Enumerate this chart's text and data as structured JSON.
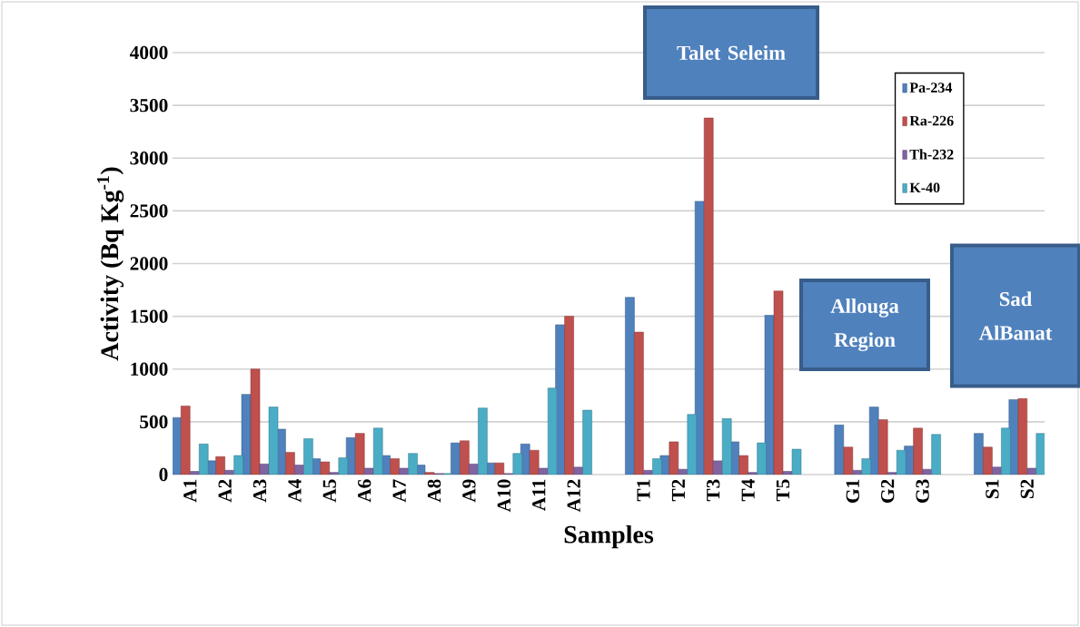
{
  "chart_data": {
    "type": "bar",
    "xlabel": "Samples",
    "ylabel": "Activity (Bq Kg$^{-1}$)",
    "categories": [
      "A1",
      "A2",
      "A3",
      "A4",
      "A5",
      "A6",
      "A7",
      "A8",
      "A9",
      "A10",
      "A11",
      "A12",
      null,
      "T1",
      "T2",
      "T3",
      "T4",
      "T5",
      null,
      "G1",
      "G2",
      "G3",
      null,
      "S1",
      "S2"
    ],
    "series": [
      {
        "name": "Pa-234",
        "color": "#4f81bd",
        "values": [
          540,
          130,
          760,
          430,
          150,
          350,
          180,
          90,
          300,
          110,
          290,
          1420,
          null,
          1680,
          180,
          2590,
          310,
          1510,
          null,
          470,
          640,
          270,
          null,
          390,
          710
        ]
      },
      {
        "name": "Ra-226",
        "color": "#c0504d",
        "values": [
          650,
          170,
          1000,
          210,
          120,
          390,
          150,
          20,
          320,
          110,
          230,
          1500,
          null,
          1350,
          310,
          3380,
          180,
          1740,
          null,
          260,
          520,
          440,
          null,
          260,
          720
        ]
      },
      {
        "name": "Th-232",
        "color": "#8064a2",
        "values": [
          30,
          40,
          100,
          90,
          20,
          60,
          60,
          10,
          100,
          10,
          60,
          70,
          null,
          40,
          50,
          130,
          20,
          30,
          null,
          40,
          20,
          50,
          null,
          70,
          60
        ]
      },
      {
        "name": "K-40",
        "color": "#4bacc6",
        "values": [
          290,
          180,
          640,
          340,
          160,
          440,
          200,
          10,
          630,
          200,
          820,
          610,
          null,
          150,
          570,
          530,
          300,
          240,
          null,
          150,
          230,
          380,
          null,
          440,
          390
        ]
      }
    ],
    "ylim": [
      0,
      4000
    ],
    "yticks": [
      0,
      500,
      1000,
      1500,
      2000,
      2500,
      3000,
      3500,
      4000
    ],
    "grid": "y",
    "legend": "top right",
    "annotations": [
      "Talet Seleim",
      "Allouga Region",
      "Sad AlBanat"
    ]
  }
}
